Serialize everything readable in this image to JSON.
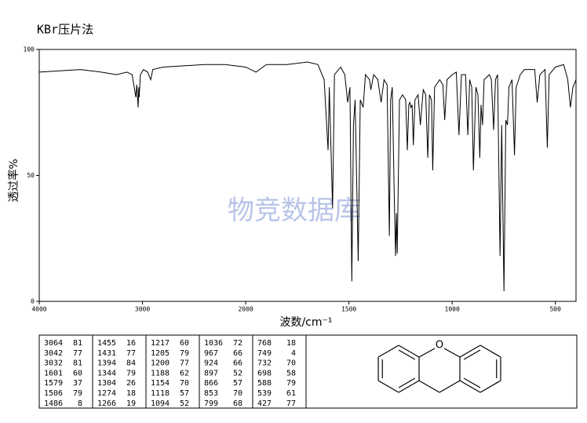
{
  "chart_data": {
    "type": "line",
    "title": "KBr压片法",
    "xlabel": "波数/cm⁻¹",
    "ylabel": "透过率%",
    "annotation": "物竞数据库",
    "xlim": [
      4000,
      400
    ],
    "xscale_break": 2000,
    "xticks": [
      4000,
      3000,
      2000,
      1500,
      1000,
      500
    ],
    "ylim": [
      0,
      100
    ],
    "yticks": [
      0,
      50,
      100
    ],
    "color": "#000000",
    "x": [
      4000,
      3800,
      3600,
      3400,
      3250,
      3150,
      3100,
      3064,
      3055,
      3042,
      3036,
      3032,
      3020,
      2990,
      2950,
      2920,
      2900,
      2800,
      2600,
      2400,
      2200,
      2000,
      1950,
      1900,
      1800,
      1700,
      1650,
      1620,
      1601,
      1595,
      1579,
      1570,
      1540,
      1520,
      1506,
      1495,
      1486,
      1478,
      1470,
      1455,
      1445,
      1431,
      1420,
      1400,
      1394,
      1380,
      1360,
      1344,
      1330,
      1315,
      1304,
      1298,
      1290,
      1280,
      1274,
      1270,
      1266,
      1255,
      1240,
      1225,
      1217,
      1210,
      1205,
      1200,
      1194,
      1188,
      1180,
      1165,
      1154,
      1140,
      1128,
      1118,
      1110,
      1100,
      1094,
      1085,
      1060,
      1045,
      1036,
      1025,
      1000,
      980,
      967,
      955,
      935,
      924,
      915,
      905,
      897,
      885,
      875,
      866,
      860,
      853,
      845,
      820,
      810,
      799,
      790,
      780,
      768,
      760,
      749,
      740,
      732,
      725,
      710,
      698,
      690,
      670,
      650,
      600,
      588,
      575,
      550,
      539,
      530,
      500,
      460,
      440,
      427,
      415,
      400
    ],
    "values": [
      91,
      91.5,
      92,
      91,
      90,
      91,
      90,
      81,
      86,
      77,
      85,
      81,
      90,
      92,
      91,
      88,
      92,
      93,
      93.5,
      94,
      94,
      93,
      91,
      94,
      94,
      95,
      94,
      88,
      60,
      85,
      37,
      90,
      93,
      90,
      79,
      85,
      8,
      70,
      80,
      16,
      80,
      77,
      90,
      88,
      84,
      90,
      88,
      79,
      88,
      86,
      26,
      80,
      85,
      40,
      18,
      35,
      19,
      80,
      82,
      80,
      60,
      78,
      79,
      77,
      78,
      62,
      80,
      82,
      70,
      84,
      82,
      57,
      82,
      80,
      52,
      85,
      88,
      86,
      72,
      88,
      90,
      91,
      66,
      90,
      90,
      66,
      88,
      85,
      52,
      85,
      82,
      57,
      78,
      70,
      88,
      90,
      88,
      68,
      88,
      90,
      18,
      70,
      4,
      72,
      70,
      85,
      88,
      58,
      85,
      90,
      92,
      92,
      79,
      90,
      92,
      61,
      90,
      93,
      94,
      88,
      77,
      85,
      88
    ]
  },
  "peak_table": [
    [
      [
        3064,
        81
      ],
      [
        3042,
        77
      ],
      [
        3032,
        81
      ],
      [
        1601,
        60
      ],
      [
        1579,
        37
      ],
      [
        1506,
        79
      ],
      [
        1486,
        8
      ]
    ],
    [
      [
        1455,
        16
      ],
      [
        1431,
        77
      ],
      [
        1394,
        84
      ],
      [
        1344,
        79
      ],
      [
        1304,
        26
      ],
      [
        1274,
        18
      ],
      [
        1266,
        19
      ]
    ],
    [
      [
        1217,
        60
      ],
      [
        1205,
        79
      ],
      [
        1200,
        77
      ],
      [
        1188,
        62
      ],
      [
        1154,
        70
      ],
      [
        1118,
        57
      ],
      [
        1094,
        52
      ]
    ],
    [
      [
        1036,
        72
      ],
      [
        967,
        66
      ],
      [
        924,
        66
      ],
      [
        897,
        52
      ],
      [
        866,
        57
      ],
      [
        853,
        70
      ],
      [
        799,
        68
      ]
    ],
    [
      [
        768,
        18
      ],
      [
        749,
        4
      ],
      [
        732,
        70
      ],
      [
        698,
        58
      ],
      [
        588,
        79
      ],
      [
        539,
        61
      ],
      [
        427,
        77
      ]
    ]
  ],
  "structure": {
    "atom": "O"
  }
}
